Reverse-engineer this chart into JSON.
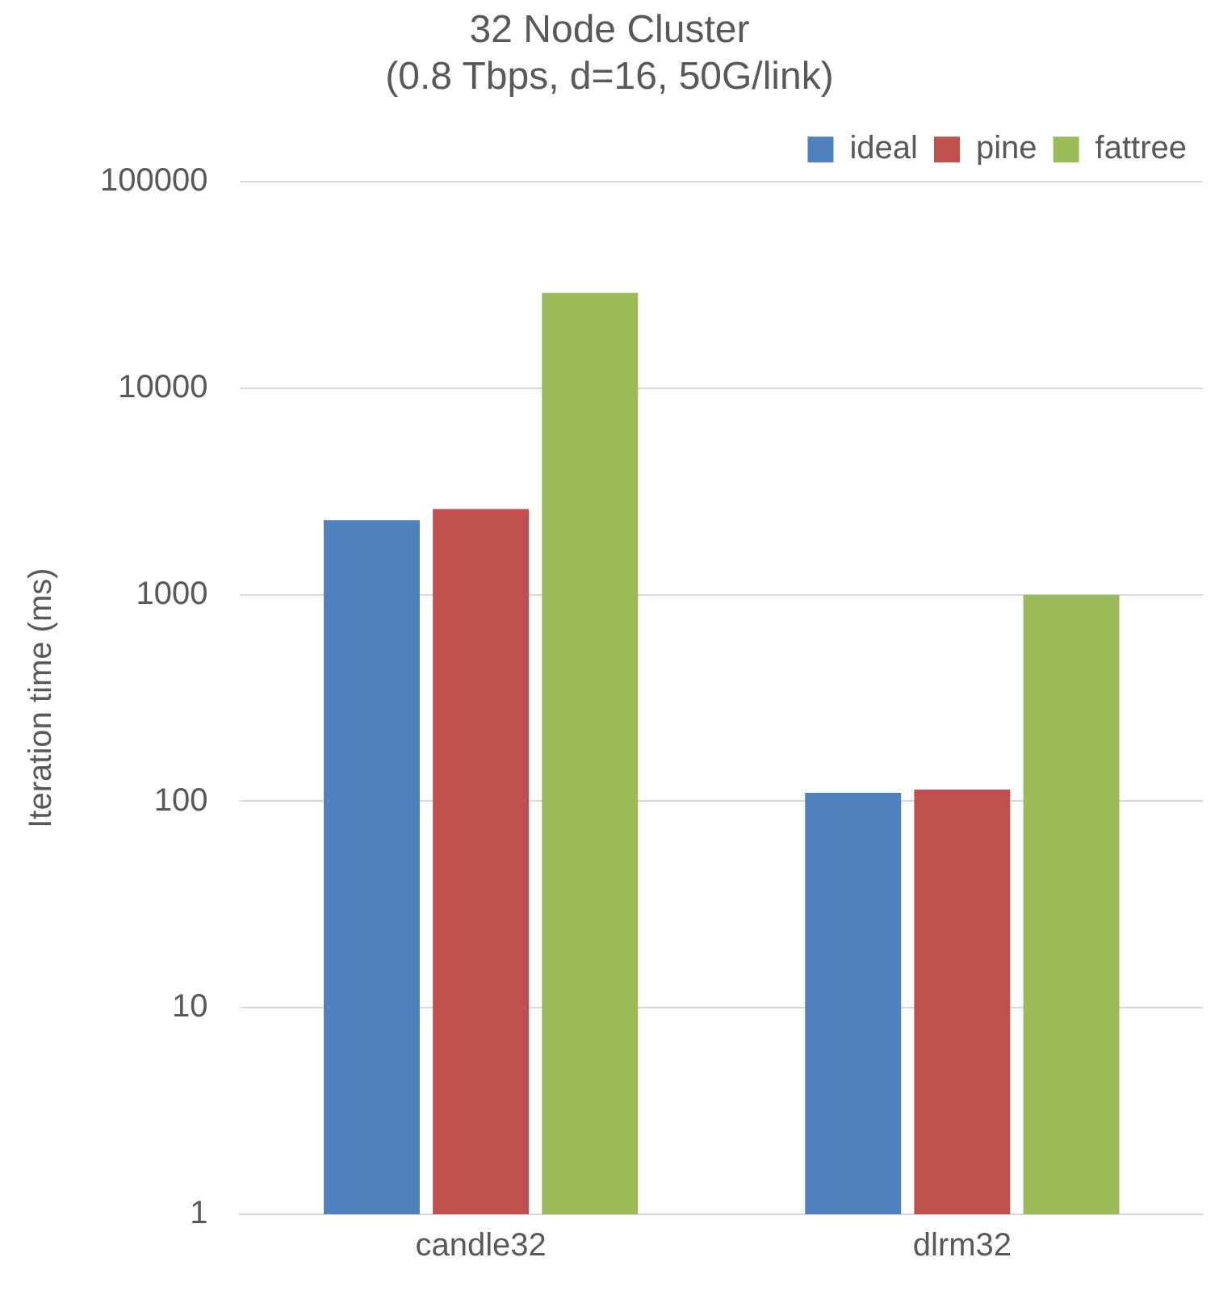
{
  "chart_data": {
    "type": "bar",
    "title": "32 Node Cluster\n(0.8 Tbps, d=16, 50G/link)",
    "ylabel": "Iteration time (ms)",
    "categories": [
      "candle32",
      "dlrm32"
    ],
    "series": [
      {
        "name": "ideal",
        "color": "#4f81bd",
        "values": [
          2300,
          110
        ]
      },
      {
        "name": "pine",
        "color": "#c0504d",
        "values": [
          2600,
          114
        ]
      },
      {
        "name": "fattree",
        "color": "#9bbb59",
        "values": [
          29000,
          1000
        ]
      }
    ],
    "log": true,
    "ylim": [
      1,
      100000
    ],
    "yticks": [
      1,
      10,
      100,
      1000,
      10000,
      100000
    ],
    "grid": "y",
    "legend": "top right"
  }
}
